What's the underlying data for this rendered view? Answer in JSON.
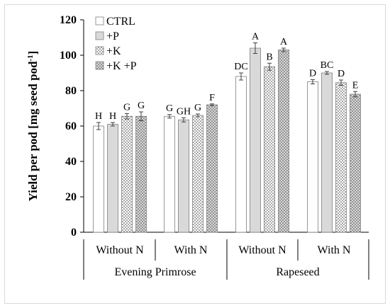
{
  "chart_data": {
    "type": "bar",
    "ylabel": "Yield per pod [mg seed pod",
    "ylabel_sup": "-1",
    "ylabel_end": "]",
    "ylim": [
      0,
      120
    ],
    "yticks": [
      "0",
      "20",
      "40",
      "60",
      "80",
      "100",
      "120"
    ],
    "grid": false,
    "legend_position": "top-left",
    "groups": [
      {
        "label": "Evening Primrose",
        "subgroups": [
          {
            "label": "Without N",
            "values": [
              60,
              61,
              65.5,
              65.5
            ],
            "errors": [
              2,
              1,
              1.5,
              2.5
            ],
            "letters": [
              "H",
              "H",
              "G",
              "G"
            ]
          },
          {
            "label": "With N",
            "values": [
              65.5,
              63.5,
              66,
              72
            ],
            "errors": [
              1,
              1.2,
              0.8,
              0.5
            ],
            "letters": [
              "G",
              "GH",
              "G",
              "F"
            ]
          }
        ]
      },
      {
        "label": "Rapeseed",
        "subgroups": [
          {
            "label": "Without N",
            "values": [
              88,
              104,
              93.5,
              103
            ],
            "errors": [
              2,
              3,
              2,
              1
            ],
            "letters": [
              "DC",
              "A",
              "B",
              "A"
            ]
          },
          {
            "label": "With N",
            "values": [
              85,
              90,
              84.5,
              78
            ],
            "errors": [
              1.2,
              0.8,
              1.5,
              1.5
            ],
            "letters": [
              "D",
              "BC",
              "D",
              "E"
            ]
          }
        ]
      }
    ],
    "series": [
      {
        "name": "CTRL",
        "fill": "white"
      },
      {
        "name": "+P",
        "fill": "gray"
      },
      {
        "name": "+K",
        "fill": "dots-white"
      },
      {
        "name": "+K +P",
        "fill": "dots-gray"
      }
    ],
    "colors": {
      "gray": "#d9d9d9",
      "dots": "#333333",
      "stroke": "#7f7f7f",
      "axis": "#000000"
    }
  }
}
